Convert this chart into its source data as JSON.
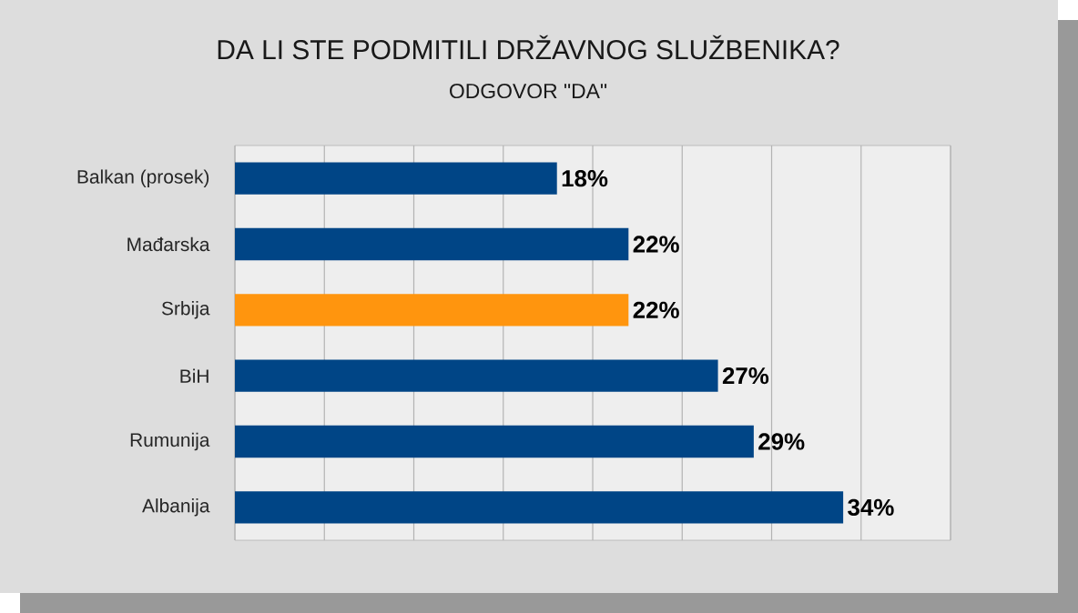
{
  "chart_data": {
    "type": "bar",
    "orientation": "horizontal",
    "title": "DA LI STE PODMITILI DRŽAVNOG SLUŽBENIKA?",
    "subtitle": "ODGOVOR \"DA\"",
    "categories": [
      "Balkan (prosek)",
      "Mađarska",
      "Srbija",
      "BiH",
      "Rumunija",
      "Albanija"
    ],
    "values": [
      18,
      22,
      22,
      27,
      29,
      34
    ],
    "colors": [
      "#004586",
      "#004586",
      "#ff950e",
      "#004586",
      "#004586",
      "#004586"
    ],
    "value_labels": [
      "18%",
      "22%",
      "22%",
      "27%",
      "29%",
      "34%"
    ],
    "xlim": [
      0,
      40
    ],
    "xticks": [
      {
        "value": 0,
        "label": null
      },
      {
        "value": 5,
        "label": null
      },
      {
        "value": 10,
        "label": null
      },
      {
        "value": 15,
        "label": null
      },
      {
        "value": 20,
        "label": null
      },
      {
        "value": 25,
        "label": null
      },
      {
        "value": 30,
        "label": null
      },
      {
        "value": 35,
        "label": null
      },
      {
        "value": 40,
        "label": null
      }
    ],
    "grid": "x",
    "tick_labels": "y"
  }
}
